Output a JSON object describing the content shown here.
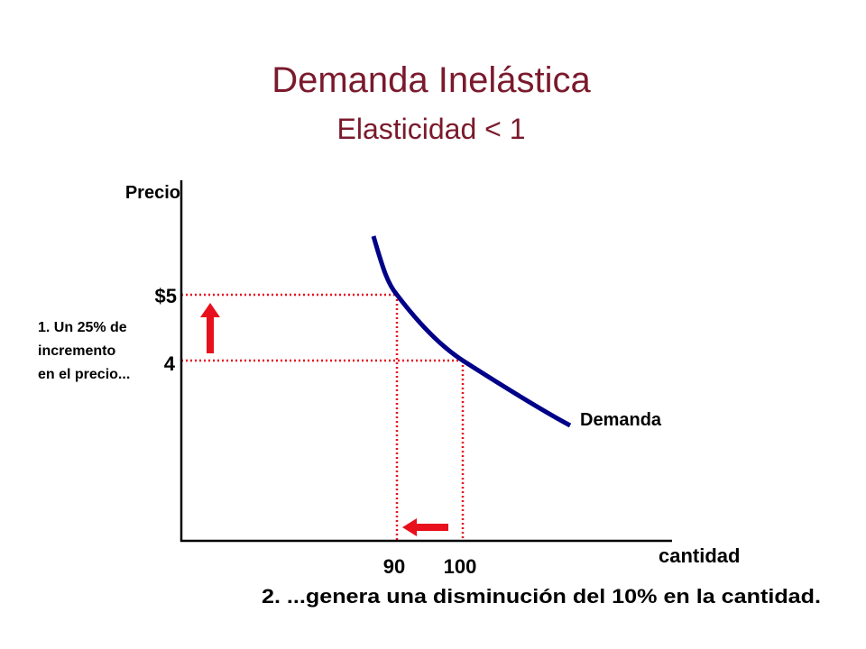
{
  "title": "Demanda Inelástica",
  "subtitle": "Elasticidad < 1",
  "axes": {
    "y_label": "Precio",
    "x_label": "cantidad"
  },
  "price_ticks": [
    "$5",
    "4"
  ],
  "quantity_ticks": [
    "90",
    "100"
  ],
  "curve_label": "Demanda",
  "annotations": {
    "price_note": [
      "1. Un 25% de",
      "incremento",
      "en el precio..."
    ],
    "quantity_note": "2. ...genera una disminución del 10% en la cantidad."
  }
}
